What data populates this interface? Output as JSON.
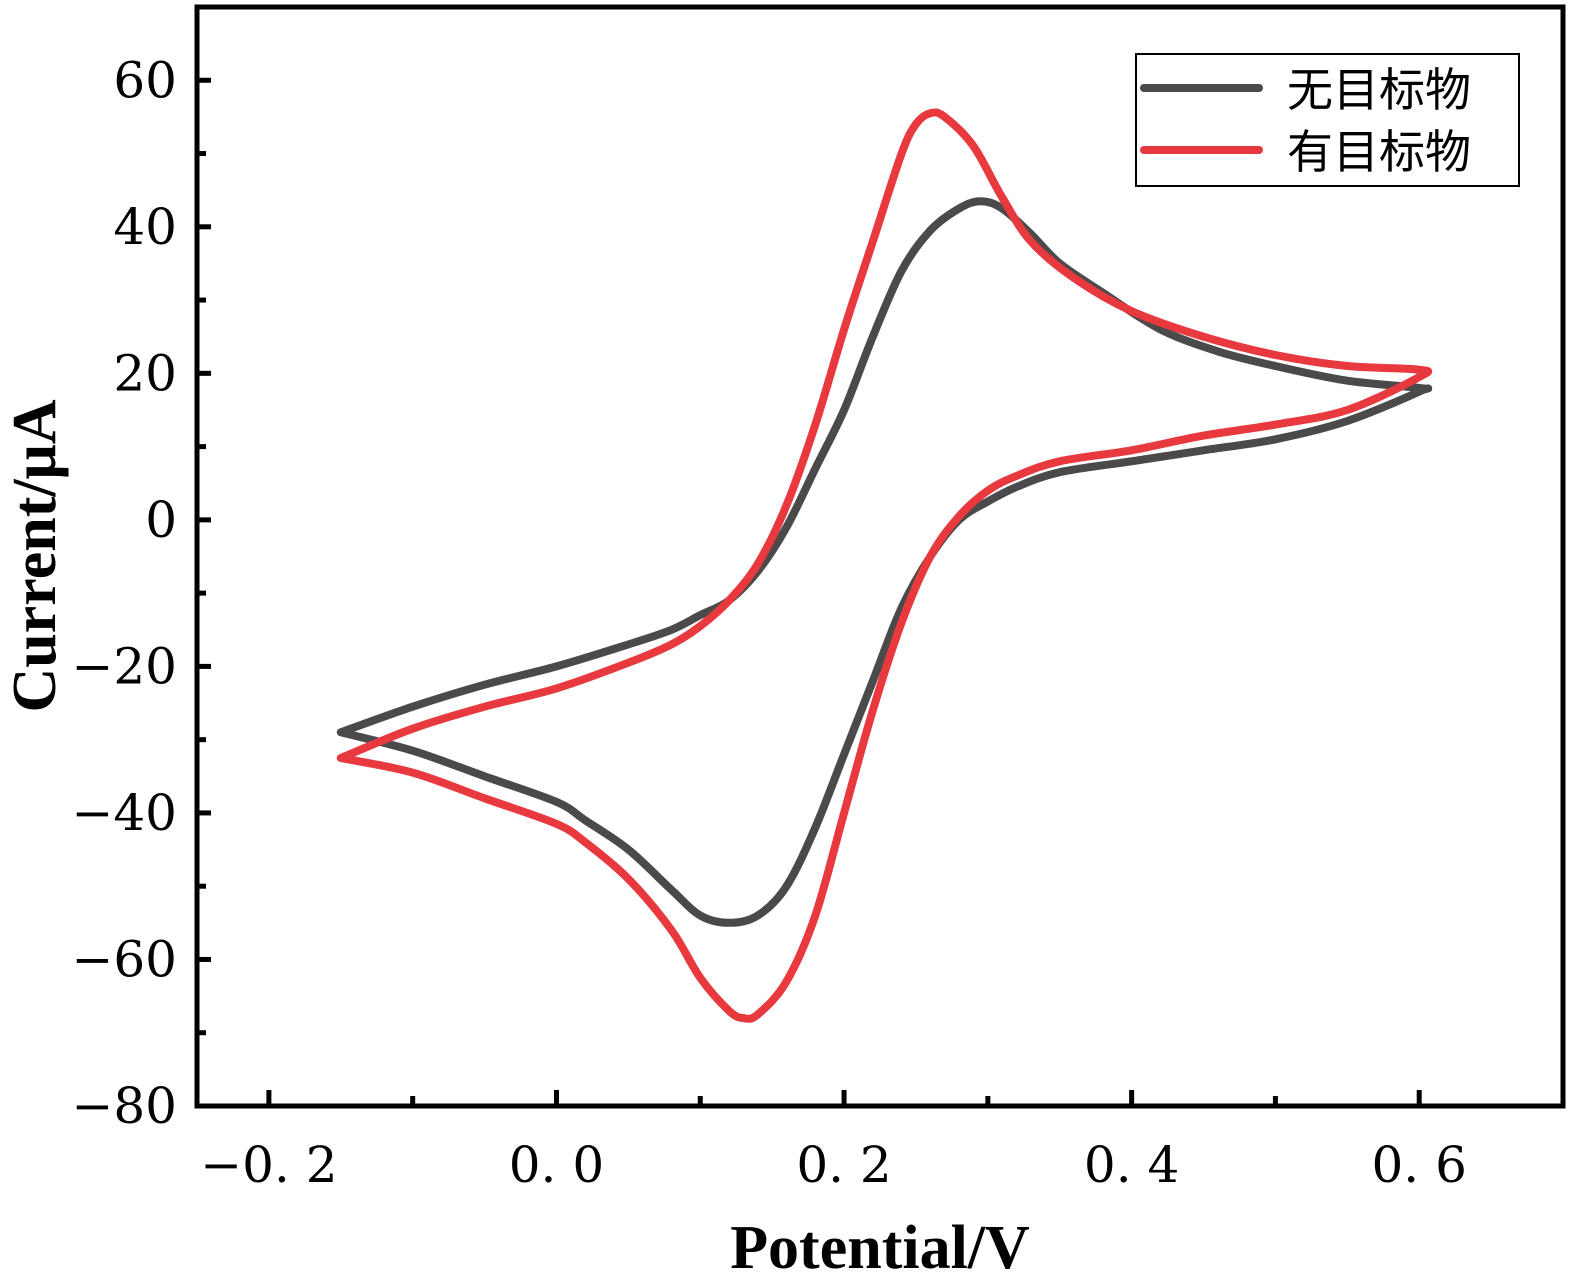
{
  "chart_data": {
    "type": "line",
    "xlabel": "Potential/V",
    "ylabel": "Current/μA",
    "xlim": [
      -0.25,
      0.7
    ],
    "ylim": [
      -80,
      70
    ],
    "x_ticks": [
      -0.2,
      0.0,
      0.2,
      0.4,
      0.6
    ],
    "x_tick_labels": [
      "−0. 2",
      "0. 0",
      "0. 2",
      "0. 4",
      "0. 6"
    ],
    "y_ticks": [
      -80,
      -60,
      -40,
      -20,
      0,
      20,
      40,
      60
    ],
    "y_tick_labels": [
      "−80",
      "−60",
      "−40",
      "−20",
      "0",
      "20",
      "40",
      "60"
    ],
    "grid": false,
    "legend": "top-right",
    "series": [
      {
        "name": "无目标物",
        "color": "#4a4a4a",
        "points": [
          [
            -0.15,
            -29
          ],
          [
            -0.1,
            -25.5
          ],
          [
            -0.05,
            -22.5
          ],
          [
            0.0,
            -20
          ],
          [
            0.05,
            -17
          ],
          [
            0.08,
            -15
          ],
          [
            0.1,
            -13
          ],
          [
            0.12,
            -11
          ],
          [
            0.14,
            -7
          ],
          [
            0.16,
            -1
          ],
          [
            0.18,
            7
          ],
          [
            0.2,
            15
          ],
          [
            0.22,
            25
          ],
          [
            0.24,
            34
          ],
          [
            0.26,
            39.5
          ],
          [
            0.28,
            42.5
          ],
          [
            0.295,
            43.5
          ],
          [
            0.31,
            42.5
          ],
          [
            0.33,
            39
          ],
          [
            0.35,
            35
          ],
          [
            0.38,
            31
          ],
          [
            0.42,
            26
          ],
          [
            0.46,
            23
          ],
          [
            0.5,
            21
          ],
          [
            0.55,
            19
          ],
          [
            0.6,
            18
          ],
          [
            0.6,
            17.5
          ],
          [
            0.55,
            13.5
          ],
          [
            0.5,
            11
          ],
          [
            0.45,
            9.5
          ],
          [
            0.4,
            8
          ],
          [
            0.35,
            6.5
          ],
          [
            0.32,
            4.5
          ],
          [
            0.3,
            2.5
          ],
          [
            0.28,
            0
          ],
          [
            0.26,
            -5
          ],
          [
            0.24,
            -12
          ],
          [
            0.22,
            -22
          ],
          [
            0.2,
            -32
          ],
          [
            0.18,
            -42
          ],
          [
            0.16,
            -50
          ],
          [
            0.14,
            -54
          ],
          [
            0.12,
            -55
          ],
          [
            0.1,
            -54
          ],
          [
            0.08,
            -50.5
          ],
          [
            0.05,
            -45
          ],
          [
            0.02,
            -41
          ],
          [
            0.0,
            -38.5
          ],
          [
            -0.05,
            -35
          ],
          [
            -0.1,
            -31.5
          ],
          [
            -0.15,
            -29
          ]
        ]
      },
      {
        "name": "有目标物",
        "color": "#e8393f",
        "points": [
          [
            -0.15,
            -32.5
          ],
          [
            -0.1,
            -28.5
          ],
          [
            -0.05,
            -25.5
          ],
          [
            0.0,
            -23
          ],
          [
            0.05,
            -19.5
          ],
          [
            0.08,
            -17
          ],
          [
            0.1,
            -14.5
          ],
          [
            0.12,
            -11
          ],
          [
            0.14,
            -6
          ],
          [
            0.16,
            2
          ],
          [
            0.18,
            13
          ],
          [
            0.2,
            26
          ],
          [
            0.22,
            38
          ],
          [
            0.24,
            50
          ],
          [
            0.25,
            54
          ],
          [
            0.26,
            55.5
          ],
          [
            0.27,
            55
          ],
          [
            0.29,
            51
          ],
          [
            0.31,
            44
          ],
          [
            0.33,
            38
          ],
          [
            0.36,
            33
          ],
          [
            0.4,
            28.5
          ],
          [
            0.45,
            25
          ],
          [
            0.5,
            22.5
          ],
          [
            0.55,
            21
          ],
          [
            0.6,
            20.5
          ],
          [
            0.6,
            19.5
          ],
          [
            0.55,
            15
          ],
          [
            0.5,
            13
          ],
          [
            0.45,
            11.5
          ],
          [
            0.4,
            9.5
          ],
          [
            0.35,
            8
          ],
          [
            0.32,
            6
          ],
          [
            0.3,
            4
          ],
          [
            0.28,
            0.5
          ],
          [
            0.26,
            -5
          ],
          [
            0.24,
            -14
          ],
          [
            0.22,
            -26
          ],
          [
            0.2,
            -40
          ],
          [
            0.18,
            -54
          ],
          [
            0.16,
            -63
          ],
          [
            0.14,
            -67.5
          ],
          [
            0.13,
            -68
          ],
          [
            0.12,
            -67
          ],
          [
            0.1,
            -62.5
          ],
          [
            0.08,
            -56
          ],
          [
            0.05,
            -49
          ],
          [
            0.02,
            -44
          ],
          [
            0.0,
            -41.5
          ],
          [
            -0.05,
            -38
          ],
          [
            -0.1,
            -34.5
          ],
          [
            -0.15,
            -32.5
          ]
        ]
      }
    ]
  }
}
